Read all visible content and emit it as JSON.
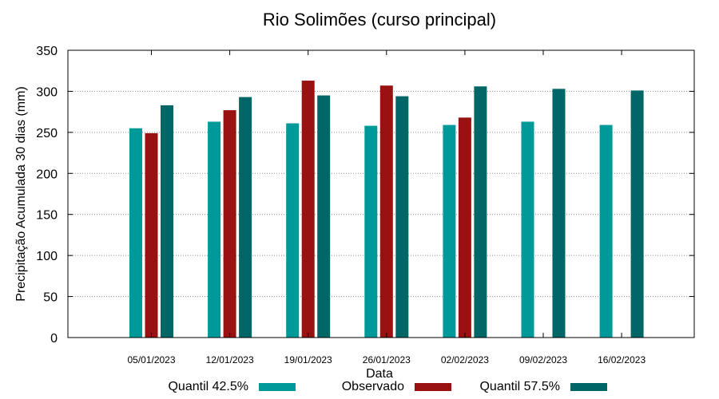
{
  "chart_data": {
    "type": "bar",
    "title": "Rio Solimões (curso principal)",
    "xlabel": "Data",
    "ylabel": "Precipitação Acumulada 30 dias (mm)",
    "ylim": [
      0,
      350
    ],
    "yticks": [
      0,
      50,
      100,
      150,
      200,
      250,
      300,
      350
    ],
    "grid": true,
    "legend_position": "bottom",
    "categories": [
      "05/01/2023",
      "12/01/2023",
      "19/01/2023",
      "26/01/2023",
      "02/02/2023",
      "09/02/2023",
      "16/02/2023"
    ],
    "series": [
      {
        "name": "Quantil 42.5%",
        "color": "#009999",
        "values": [
          255,
          263,
          261,
          258,
          259,
          263,
          259
        ]
      },
      {
        "name": "Observado",
        "color": "#991111",
        "values": [
          249,
          277,
          313,
          307,
          268,
          null,
          null
        ]
      },
      {
        "name": "Quantil 57.5%",
        "color": "#006666",
        "values": [
          283,
          293,
          295,
          294,
          306,
          303,
          301
        ]
      }
    ]
  }
}
